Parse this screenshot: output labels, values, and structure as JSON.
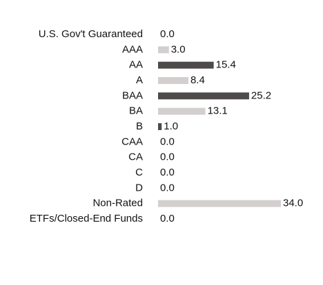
{
  "chart_data": {
    "type": "hbar",
    "categories": [
      "U.S. Gov't Guaranteed",
      "AAA",
      "AA",
      "A",
      "BAA",
      "BA",
      "B",
      "CAA",
      "CA",
      "C",
      "D",
      "Non-Rated",
      "ETFs/Closed-End Funds"
    ],
    "values": [
      0,
      3,
      15.4,
      8.4,
      25.2,
      13.1,
      1,
      0,
      0,
      0,
      0,
      34,
      0
    ],
    "value_labels": [
      "0.0",
      "3.0",
      "15.4",
      "8.4",
      "25.2",
      "13.1",
      "1.0",
      "0.0",
      "0.0",
      "0.0",
      "0.0",
      "34.0",
      "0.0"
    ],
    "colors": [
      "#d3cfcf",
      "#d3cfcf",
      "#4d4a4a",
      "#d3cfcf",
      "#4d4a4a",
      "#d3cfcf",
      "#4d4a4a",
      "#d3cfcf",
      "#4d4a4a",
      "#d3cfcf",
      "#4d4a4a",
      "#d3cfcf",
      "#4d4a4a"
    ]
  }
}
